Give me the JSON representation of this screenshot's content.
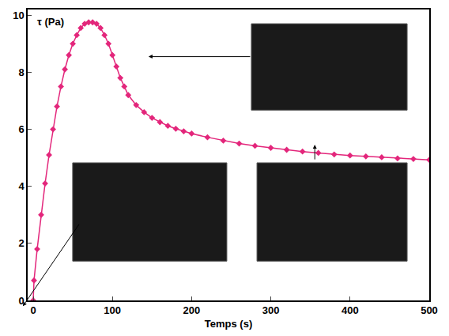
{
  "chart_data": {
    "type": "line",
    "x_label": "Temps (s)",
    "y_label": "τ (Pa)",
    "x": [
      0,
      1,
      5,
      10,
      15,
      20,
      25,
      30,
      35,
      40,
      45,
      50,
      55,
      60,
      65,
      70,
      75,
      80,
      85,
      90,
      95,
      100,
      105,
      110,
      115,
      120,
      130,
      140,
      150,
      160,
      170,
      180,
      190,
      200,
      220,
      240,
      260,
      280,
      300,
      320,
      340,
      360,
      380,
      400,
      420,
      440,
      460,
      480,
      500
    ],
    "values": [
      0,
      0.7,
      1.8,
      3.0,
      4.1,
      5.1,
      6.0,
      6.8,
      7.5,
      8.1,
      8.6,
      9.0,
      9.3,
      9.55,
      9.7,
      9.75,
      9.75,
      9.7,
      9.55,
      9.3,
      9.0,
      8.6,
      8.2,
      7.8,
      7.5,
      7.2,
      6.85,
      6.6,
      6.4,
      6.25,
      6.12,
      6.02,
      5.93,
      5.85,
      5.72,
      5.6,
      5.5,
      5.42,
      5.35,
      5.28,
      5.22,
      5.17,
      5.12,
      5.08,
      5.05,
      5.02,
      4.98,
      4.96,
      4.93
    ],
    "color": "#e3267b",
    "marker": "diamond",
    "line_style": "solid",
    "xlim": [
      -7,
      500
    ],
    "ylim": [
      0,
      10.2
    ],
    "xticks": [
      0,
      100,
      200,
      300,
      400,
      500
    ],
    "yticks": [
      0,
      2,
      4,
      6,
      8,
      10
    ],
    "grid": false
  }
}
